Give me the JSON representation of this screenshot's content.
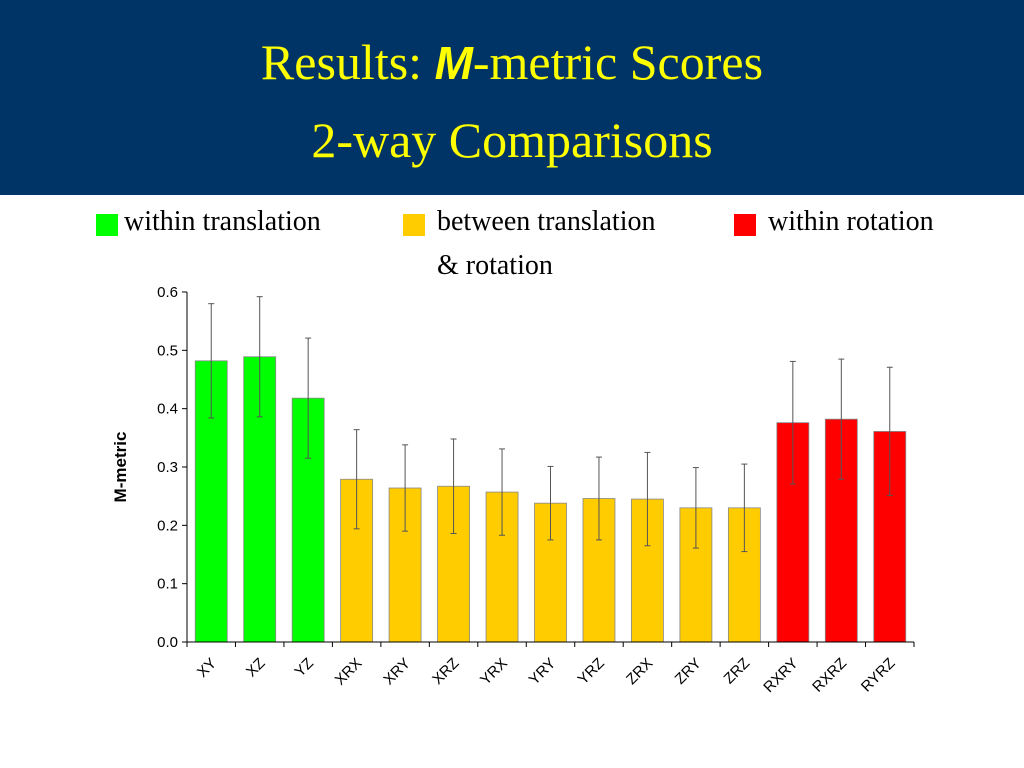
{
  "slide": {
    "title_prefix": "Results: ",
    "title_m": "M",
    "title_suffix": "-metric Scores",
    "title_line2": "2-way Comparisons"
  },
  "colors": {
    "title_band": "#003366",
    "title_text": "#ffff00",
    "within_translation": "#00ff00",
    "between": "#ffcc00",
    "within_rotation": "#ff0000"
  },
  "legend": [
    {
      "label": "within translation",
      "color": "#00ff00"
    },
    {
      "label": "between translation",
      "label2": "& rotation",
      "color": "#ffcc00"
    },
    {
      "label": "within rotation",
      "color": "#ff0000"
    }
  ],
  "chart_data": {
    "type": "bar",
    "xlabel": "",
    "ylabel": "M-metric",
    "ylim": [
      0,
      0.6
    ],
    "yticks": [
      "0.0",
      "0.1",
      "0.2",
      "0.3",
      "0.4",
      "0.5",
      "0.6"
    ],
    "grid": false,
    "categories": [
      "XY",
      "XZ",
      "YZ",
      "XRX",
      "XRY",
      "XRZ",
      "YRX",
      "YRY",
      "YRZ",
      "ZRX",
      "ZRY",
      "ZRZ",
      "RXRY",
      "RXRZ",
      "RYRZ"
    ],
    "values": [
      0.482,
      0.489,
      0.418,
      0.279,
      0.264,
      0.267,
      0.257,
      0.238,
      0.246,
      0.245,
      0.23,
      0.23,
      0.376,
      0.382,
      0.361
    ],
    "errors": [
      0.098,
      0.103,
      0.103,
      0.085,
      0.074,
      0.081,
      0.074,
      0.063,
      0.071,
      0.08,
      0.069,
      0.075,
      0.105,
      0.103,
      0.11
    ],
    "groups": [
      "within translation",
      "within translation",
      "within translation",
      "between translation & rotation",
      "between translation & rotation",
      "between translation & rotation",
      "between translation & rotation",
      "between translation & rotation",
      "between translation & rotation",
      "between translation & rotation",
      "between translation & rotation",
      "between translation & rotation",
      "within rotation",
      "within rotation",
      "within rotation"
    ]
  }
}
